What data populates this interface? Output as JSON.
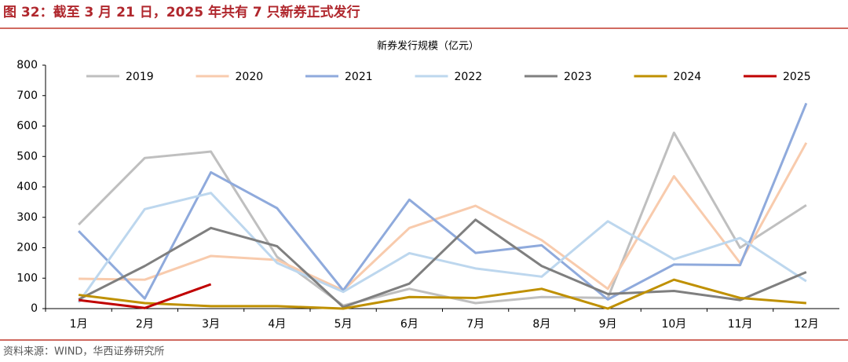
{
  "header": {
    "title": "图 32：截至 3 月 21 日，2025 年共有 7 只新券正式发行"
  },
  "chart_data": {
    "type": "line",
    "title": "新券发行规模（亿元）",
    "categories": [
      "1月",
      "2月",
      "3月",
      "4月",
      "5月",
      "6月",
      "7月",
      "8月",
      "9月",
      "10月",
      "11月",
      "12月"
    ],
    "series": [
      {
        "name": "2019",
        "color": "#bfbfbf",
        "values": [
          276,
          495,
          516,
          170,
          10,
          65,
          18,
          38,
          35,
          578,
          200,
          340
        ]
      },
      {
        "name": "2020",
        "color": "#f8cbad",
        "values": [
          98,
          95,
          173,
          160,
          60,
          265,
          338,
          225,
          65,
          435,
          150,
          545
        ]
      },
      {
        "name": "2021",
        "color": "#8faadc",
        "values": [
          255,
          33,
          448,
          330,
          60,
          358,
          183,
          208,
          30,
          145,
          143,
          675
        ]
      },
      {
        "name": "2022",
        "color": "#bdd7ee",
        "values": [
          20,
          327,
          380,
          150,
          55,
          182,
          132,
          105,
          287,
          162,
          232,
          90
        ]
      },
      {
        "name": "2023",
        "color": "#7f7f7f",
        "values": [
          30,
          140,
          265,
          205,
          5,
          82,
          292,
          140,
          48,
          58,
          28,
          120
        ]
      },
      {
        "name": "2024",
        "color": "#bf9000",
        "values": [
          45,
          18,
          8,
          8,
          0,
          38,
          35,
          65,
          0,
          95,
          35,
          18
        ]
      },
      {
        "name": "2025",
        "color": "#c00000",
        "values": [
          28,
          2,
          80,
          null,
          null,
          null,
          null,
          null,
          null,
          null,
          null,
          null
        ]
      }
    ],
    "ylim": [
      0,
      800
    ],
    "yticks": [
      0,
      100,
      200,
      300,
      400,
      500,
      600,
      700,
      800
    ],
    "grid": false
  },
  "footer": {
    "source": "资料来源：WIND，华西证券研究所"
  }
}
